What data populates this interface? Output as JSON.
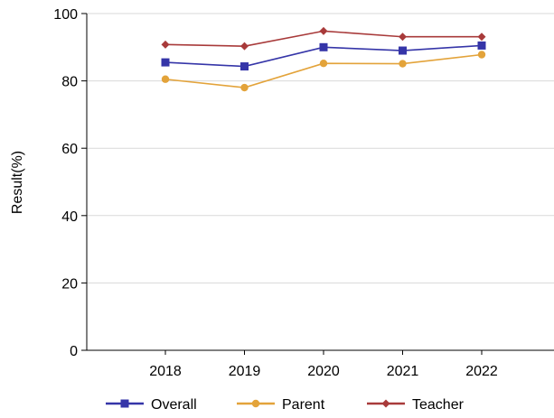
{
  "chart_data": {
    "type": "line",
    "title": "",
    "xlabel": "",
    "ylabel": "Result(%)",
    "categories": [
      "2018",
      "2019",
      "2020",
      "2021",
      "2022"
    ],
    "ylim": [
      0,
      100
    ],
    "yticks": [
      0,
      20,
      40,
      60,
      80,
      100
    ],
    "grid": true,
    "legend_position": "bottom",
    "series": [
      {
        "name": "Overall",
        "values": [
          85.5,
          84.3,
          90.0,
          89.0,
          90.5
        ],
        "color": "#3535a8",
        "marker": "square"
      },
      {
        "name": "Parent",
        "values": [
          80.5,
          78.0,
          85.2,
          85.1,
          87.8
        ],
        "color": "#e3a33a",
        "marker": "circle"
      },
      {
        "name": "Teacher",
        "values": [
          90.8,
          90.3,
          94.8,
          93.1,
          93.1
        ],
        "color": "#a83a3a",
        "marker": "diamond"
      }
    ]
  }
}
